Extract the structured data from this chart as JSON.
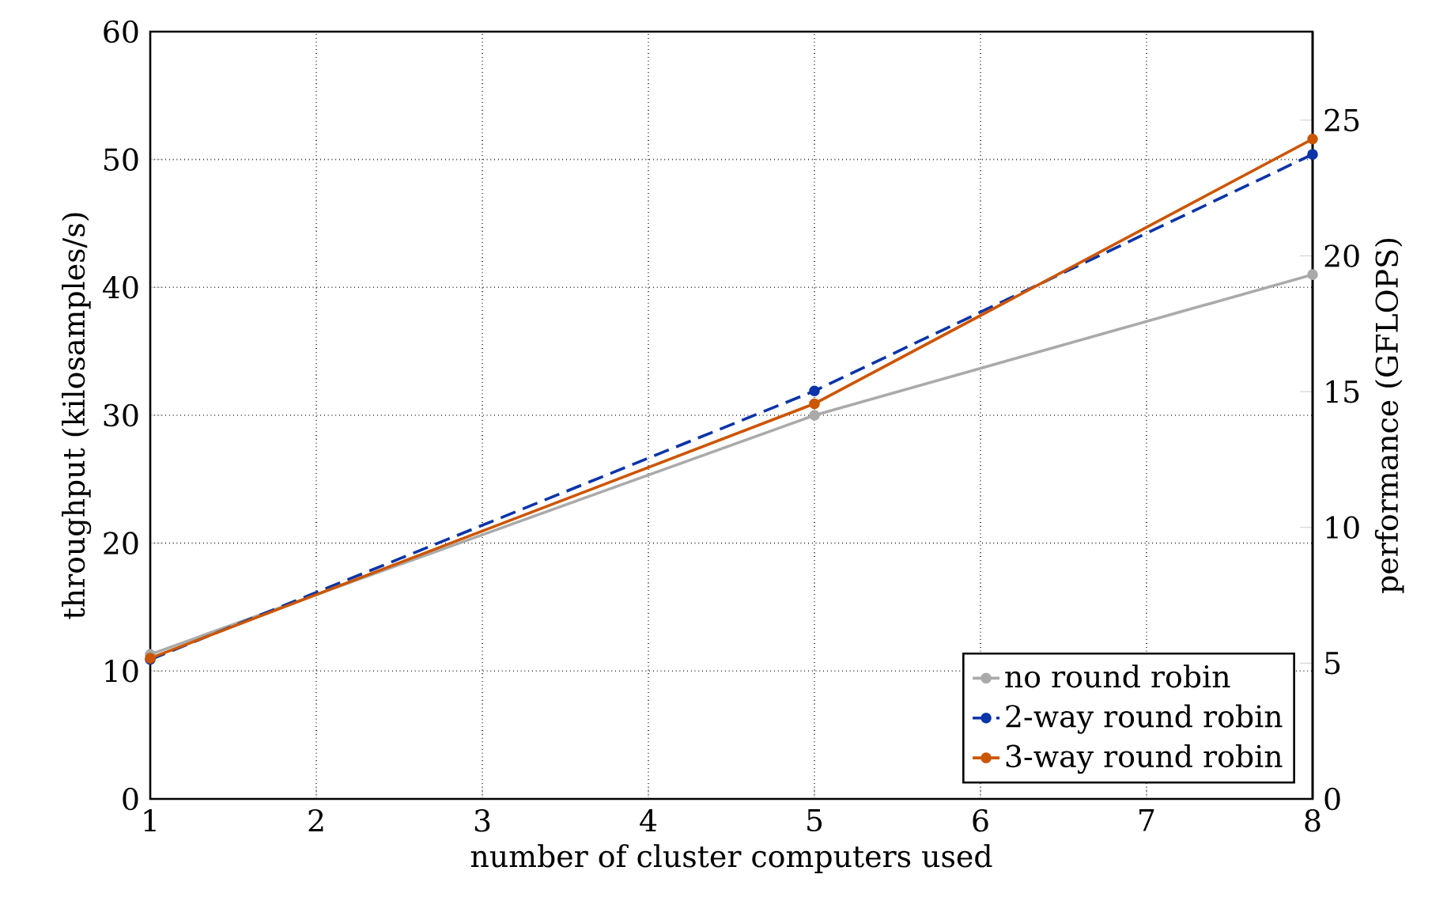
{
  "chart_data": {
    "type": "line",
    "xlabel": "number of cluster computers used",
    "ylabel": "throughput (kilosamples/s)",
    "y2label": "performance (GFLOPS)",
    "x": [
      1,
      5,
      8
    ],
    "series": [
      {
        "name": "no round robin",
        "color": "#aaaaaa",
        "values": [
          11.3,
          30.0,
          41.0
        ]
      },
      {
        "name": "2-way round robin",
        "color": "#0a34a8",
        "values": [
          10.9,
          31.9,
          50.4
        ],
        "line_style": "dashed"
      },
      {
        "name": "3-way round robin",
        "color": "#cc5500",
        "values": [
          11.0,
          30.9,
          51.6
        ]
      }
    ],
    "xlim": [
      1,
      8
    ],
    "xticks": [
      1,
      2,
      3,
      4,
      5,
      6,
      7,
      8
    ],
    "ylim": [
      0,
      60
    ],
    "yticks": [
      0,
      10,
      20,
      30,
      40,
      50,
      60
    ],
    "y2lim": [
      0,
      28.26
    ],
    "y2ticks": [
      0,
      5,
      10,
      15,
      20,
      25
    ],
    "grid": true,
    "legend": "bottom right",
    "marker": "circle",
    "line_style": "solid"
  }
}
